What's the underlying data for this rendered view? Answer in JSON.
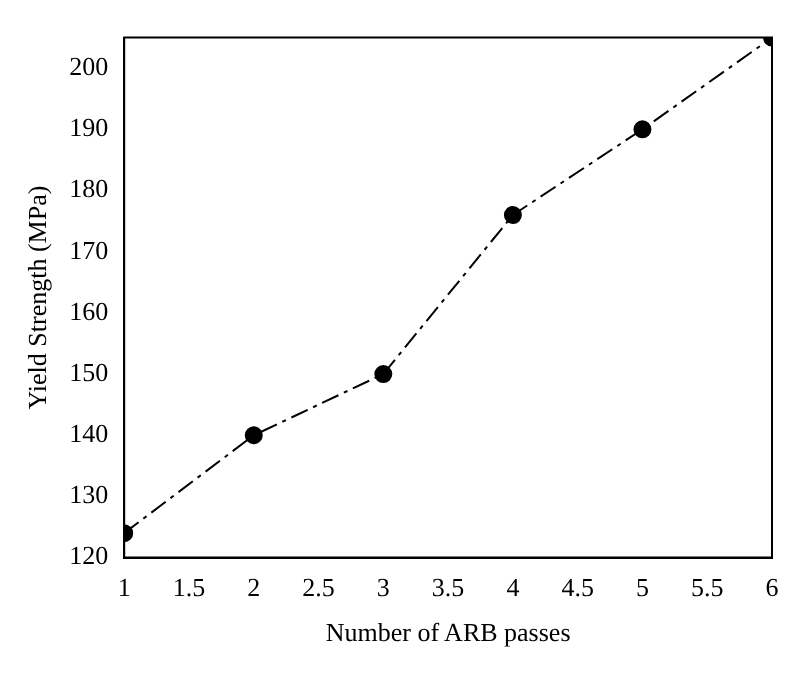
{
  "chart_data": {
    "type": "line",
    "xlabel": "Number of ARB passes",
    "ylabel": "Yield Strength (MPa)",
    "x": [
      1,
      2,
      3,
      4,
      5,
      6
    ],
    "series": [
      {
        "color": "#000000",
        "values": [
          124,
          140,
          150,
          176,
          190,
          205
        ]
      }
    ],
    "xlim": [
      1,
      6
    ],
    "xticks": [
      1,
      1.5,
      2,
      2.5,
      3,
      3.5,
      4,
      4.5,
      5,
      5.5,
      6
    ],
    "ylim": [
      120,
      205
    ],
    "yticks": [
      120,
      130,
      140,
      150,
      160,
      170,
      180,
      190,
      200
    ],
    "grid": false,
    "legend": false,
    "marker": "circle",
    "line_style": "dashed"
  }
}
